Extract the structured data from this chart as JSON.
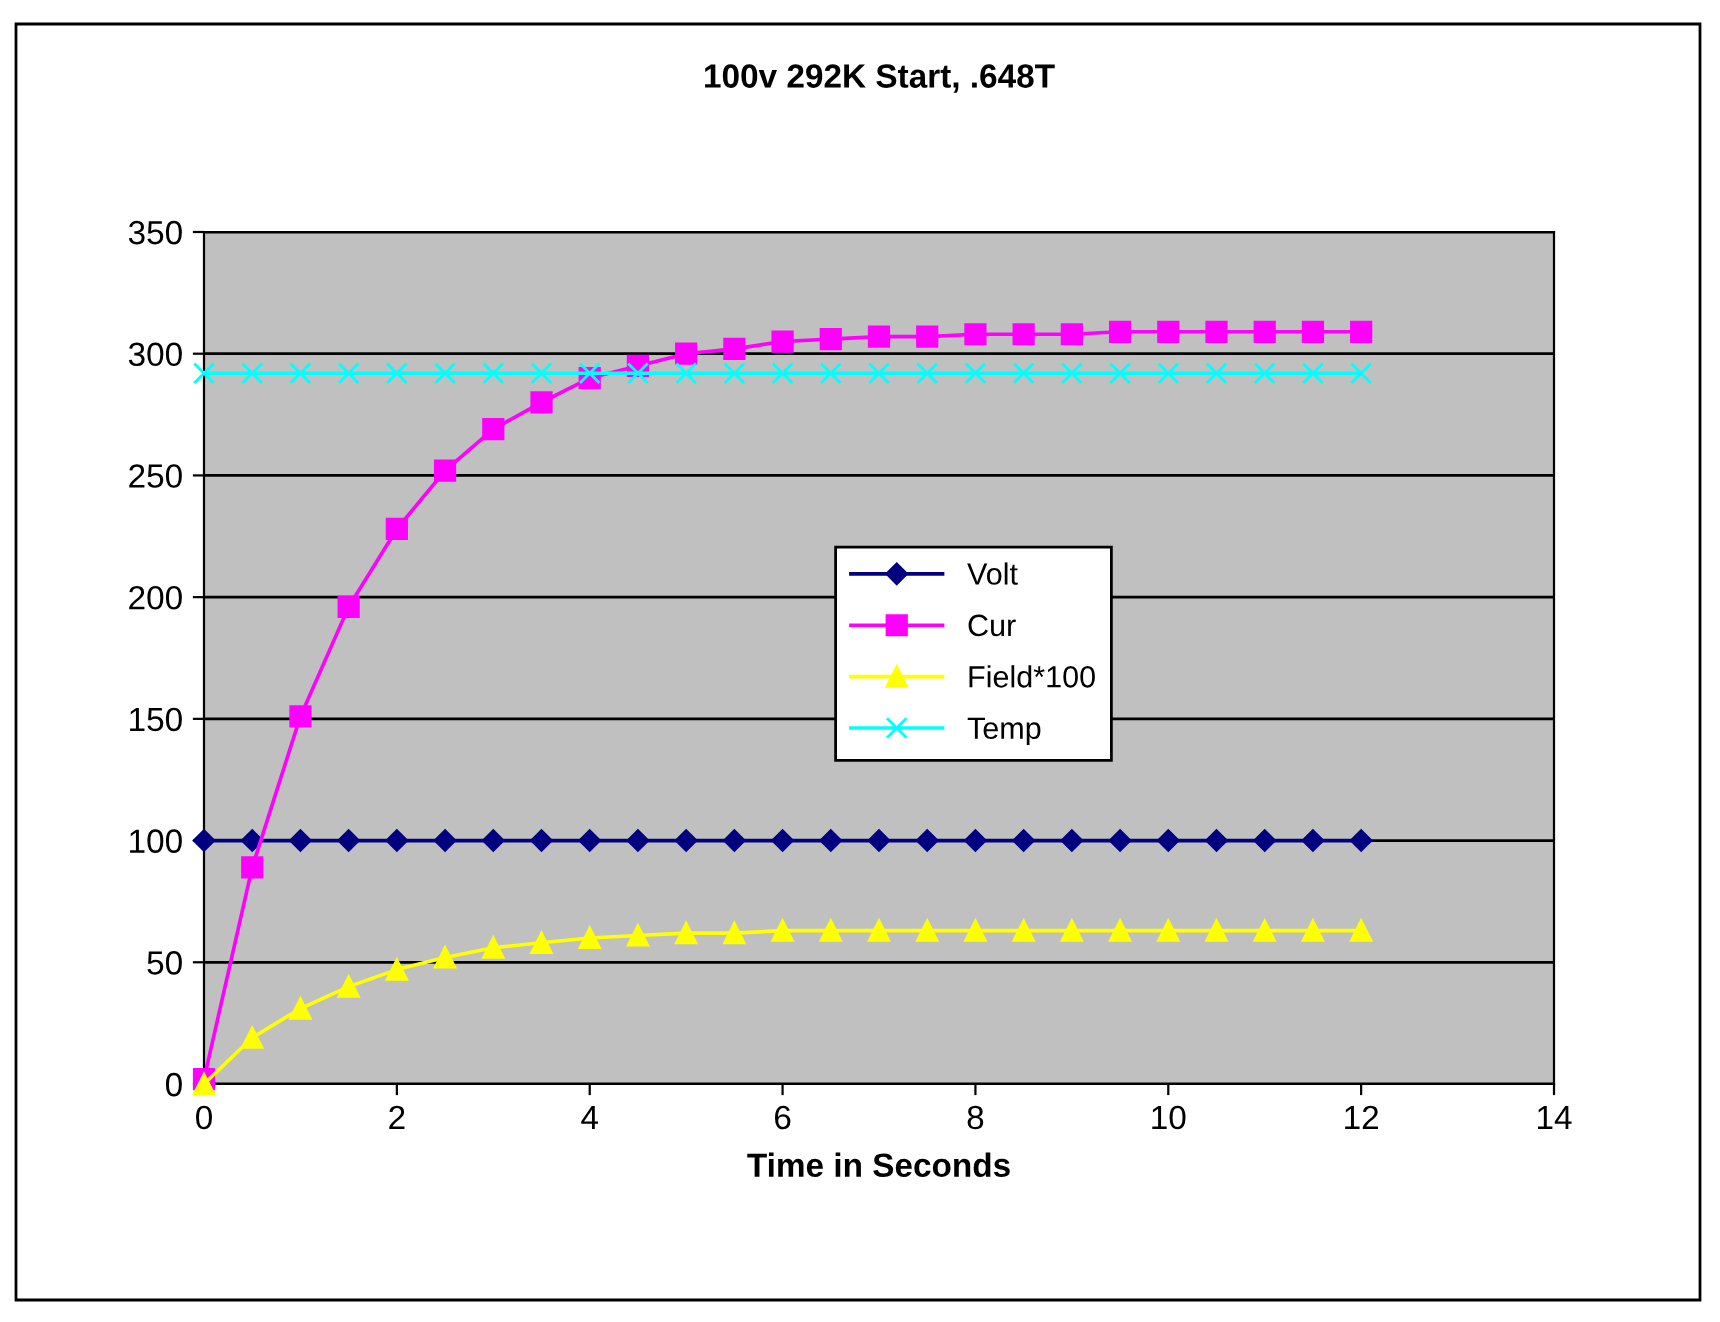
{
  "chart_data": {
    "type": "line",
    "title": "100v 292K Start, .648T",
    "xlabel": "Time in Seconds",
    "x": [
      0,
      0.5,
      1,
      1.5,
      2,
      2.5,
      3,
      3.5,
      4,
      4.5,
      5,
      5.5,
      6,
      6.5,
      7,
      7.5,
      8,
      8.5,
      9,
      9.5,
      10,
      10.5,
      11,
      11.5,
      12
    ],
    "series": [
      {
        "name": "Volt",
        "color": "#000080",
        "marker": "diamond",
        "values": [
          100,
          100,
          100,
          100,
          100,
          100,
          100,
          100,
          100,
          100,
          100,
          100,
          100,
          100,
          100,
          100,
          100,
          100,
          100,
          100,
          100,
          100,
          100,
          100,
          100
        ]
      },
      {
        "name": "Cur",
        "color": "#ff00ff",
        "marker": "square",
        "values": [
          2,
          89,
          151,
          196,
          228,
          252,
          269,
          280,
          290,
          295,
          300,
          302,
          305,
          306,
          307,
          307,
          308,
          308,
          308,
          309,
          309,
          309,
          309,
          309,
          309
        ]
      },
      {
        "name": "Field*100",
        "color": "#ffff00",
        "marker": "triangle",
        "values": [
          0,
          19,
          31,
          40,
          47,
          52,
          56,
          58,
          60,
          61,
          62,
          62,
          63,
          63,
          63,
          63,
          63,
          63,
          63,
          63,
          63,
          63,
          63,
          63,
          63
        ]
      },
      {
        "name": "Temp",
        "color": "#00ffff",
        "marker": "cross",
        "values": [
          292,
          292,
          292,
          292,
          292,
          292,
          292,
          292,
          292,
          292,
          292,
          292,
          292,
          292,
          292,
          292,
          292,
          292,
          292,
          292,
          292,
          292,
          292,
          292,
          292
        ]
      }
    ],
    "xlim": [
      0,
      14
    ],
    "xticks": [
      0,
      2,
      4,
      6,
      8,
      10,
      12,
      14
    ],
    "ylim": [
      0,
      350
    ],
    "yticks": [
      0,
      50,
      100,
      150,
      200,
      250,
      300,
      350
    ],
    "grid": "y",
    "legend": "right",
    "line_style": "solid"
  }
}
